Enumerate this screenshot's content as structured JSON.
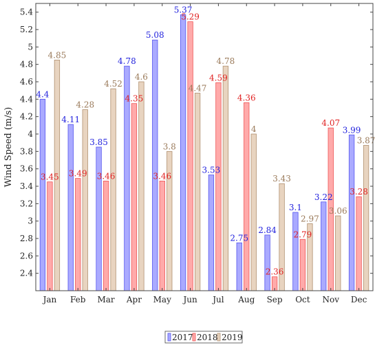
{
  "chart_data": {
    "type": "bar",
    "categories": [
      "Jan",
      "Feb",
      "Mar",
      "Apr",
      "May",
      "Jun",
      "Jul",
      "Aug",
      "Sep",
      "Oct",
      "Nov",
      "Dec"
    ],
    "series": [
      {
        "name": "2017",
        "values": [
          4.4,
          4.11,
          3.85,
          4.78,
          5.08,
          5.37,
          3.53,
          2.75,
          2.84,
          3.1,
          3.22,
          3.99
        ],
        "labels": [
          "4.4",
          "4.11",
          "3.85",
          "4.78",
          "5.08",
          "5.37",
          "3.53",
          "2.75",
          "2.84",
          "3.1",
          "3.22",
          "3.99"
        ],
        "fill": "#aaaaff",
        "stroke": "#5555ee",
        "label_color": "#2222dd"
      },
      {
        "name": "2018",
        "values": [
          3.45,
          3.49,
          3.46,
          4.35,
          3.46,
          5.29,
          4.59,
          4.36,
          2.36,
          2.79,
          4.07,
          3.28
        ],
        "labels": [
          "3.45",
          "3.49",
          "3.46",
          "4.35",
          "3.46",
          "5.29",
          "4.59",
          "4.36",
          "2.36",
          "2.79",
          "4.07",
          "3.28"
        ],
        "fill": "#ffaaaa",
        "stroke": "#ee5555",
        "label_color": "#e02020"
      },
      {
        "name": "2019",
        "values": [
          4.85,
          4.28,
          4.52,
          4.6,
          3.8,
          4.47,
          4.78,
          4.0,
          3.43,
          2.97,
          3.06,
          3.87
        ],
        "labels": [
          "4.85",
          "4.28",
          "4.52",
          "4.6",
          "3.8",
          "4.47",
          "4.78",
          "4",
          "3.43",
          "2.97",
          "3.06",
          "3.87"
        ],
        "fill": "#e8d4c0",
        "stroke": "#b09070",
        "label_color": "#9a7a5a"
      }
    ],
    "ylabel": "Wind Speed (m/s)",
    "xlabel": "",
    "ylim": [
      2.2,
      5.5
    ],
    "yticks": [
      "2.4",
      "2.6",
      "2.8",
      "3",
      "3.2",
      "3.4",
      "3.6",
      "3.8",
      "4",
      "4.2",
      "4.4",
      "4.6",
      "4.8",
      "5",
      "5.2",
      "5.4"
    ],
    "grid": false,
    "legend_position": "bottom-center"
  }
}
